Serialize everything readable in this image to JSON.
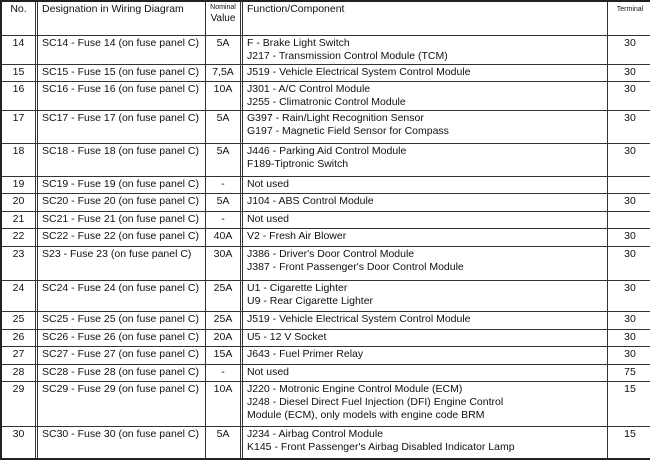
{
  "headers": {
    "no": "No.",
    "designation": "Designation in Wiring Diagram",
    "value_top": "Nominal",
    "value_bottom": "Value",
    "function": "Function/Component",
    "terminal": "Terminal"
  },
  "rows": [
    {
      "no": "14",
      "designation": "SC14 - Fuse 14 (on fuse panel C)",
      "value": "5A",
      "function": [
        "F - Brake Light Switch",
        "J217 - Transmission Control Module (TCM)"
      ],
      "terminal": "30"
    },
    {
      "no": "15",
      "designation": "SC15 - Fuse 15 (on fuse panel C)",
      "value": "7,5A",
      "function": [
        "J519 - Vehicle Electrical System Control Module"
      ],
      "terminal": "30"
    },
    {
      "no": "16",
      "designation": "SC16 - Fuse 16 (on fuse panel C)",
      "value": "10A",
      "function": [
        "J301 - A/C Control Module",
        "J255 - Climatronic Control Module"
      ],
      "terminal": "30"
    },
    {
      "no": "17",
      "designation": "SC17 - Fuse 17 (on fuse panel C)",
      "value": "5A",
      "function": [
        "G397 - Rain/Light Recognition Sensor",
        "G197 - Magnetic Field Sensor for Compass"
      ],
      "terminal": "30"
    },
    {
      "no": "18",
      "designation": "SC18 - Fuse 18 (on fuse panel C)",
      "value": "5A",
      "function": [
        "J446 - Parking Aid Control Module",
        "F189-Tiptronic Switch"
      ],
      "terminal": "30"
    },
    {
      "no": "19",
      "designation": "SC19 - Fuse 19 (on fuse panel C)",
      "value": "-",
      "function": [
        "Not used"
      ],
      "terminal": ""
    },
    {
      "no": "20",
      "designation": "SC20 - Fuse 20 (on fuse panel C)",
      "value": "5A",
      "function": [
        "J104 - ABS Control Module"
      ],
      "terminal": "30"
    },
    {
      "no": "21",
      "designation": "SC21 - Fuse 21 (on fuse panel C)",
      "value": "-",
      "function": [
        "Not used"
      ],
      "terminal": ""
    },
    {
      "no": "22",
      "designation": "SC22 - Fuse 22 (on fuse panel C)",
      "value": "40A",
      "function": [
        "V2 - Fresh Air Blower"
      ],
      "terminal": "30"
    },
    {
      "no": "23",
      "designation": "S23 - Fuse 23 (on fuse panel C)",
      "value": "30A",
      "function": [
        "J386 - Driver's Door Control Module",
        "J387 - Front Passenger's Door Control Module"
      ],
      "terminal": "30"
    },
    {
      "no": "24",
      "designation": "SC24 - Fuse 24 (on fuse panel C)",
      "value": "25A",
      "function": [
        "U1 - Cigarette Lighter",
        "U9 - Rear Cigarette Lighter"
      ],
      "terminal": "30"
    },
    {
      "no": "25",
      "designation": "SC25 - Fuse 25 (on fuse panel C)",
      "value": "25A",
      "function": [
        "J519 - Vehicle Electrical System Control Module"
      ],
      "terminal": "30"
    },
    {
      "no": "26",
      "designation": "SC26 - Fuse 26 (on fuse panel C)",
      "value": "20A",
      "function": [
        "U5 - 12 V Socket"
      ],
      "terminal": "30"
    },
    {
      "no": "27",
      "designation": "SC27 - Fuse 27 (on fuse panel C)",
      "value": "15A",
      "function": [
        "J643 - Fuel Primer Relay"
      ],
      "terminal": "30"
    },
    {
      "no": "28",
      "designation": "SC28 - Fuse 28 (on fuse panel C)",
      "value": "-",
      "function": [
        "Not used"
      ],
      "terminal": "75"
    },
    {
      "no": "29",
      "designation": "SC29 - Fuse 29 (on fuse panel C)",
      "value": "10A",
      "function": [
        "J220 - Motronic Engine Control Module (ECM)",
        "J248 - Diesel Direct Fuel Injection (DFI) Engine Control",
        "Module (ECM), only models with engine code BRM"
      ],
      "terminal": "15"
    },
    {
      "no": "30",
      "designation": "SC30 - Fuse 30 (on fuse panel C)",
      "value": "5A",
      "function": [
        "J234 - Airbag Control Module",
        "K145 - Front Passenger's Airbag Disabled Indicator Lamp"
      ],
      "terminal": "15"
    }
  ]
}
